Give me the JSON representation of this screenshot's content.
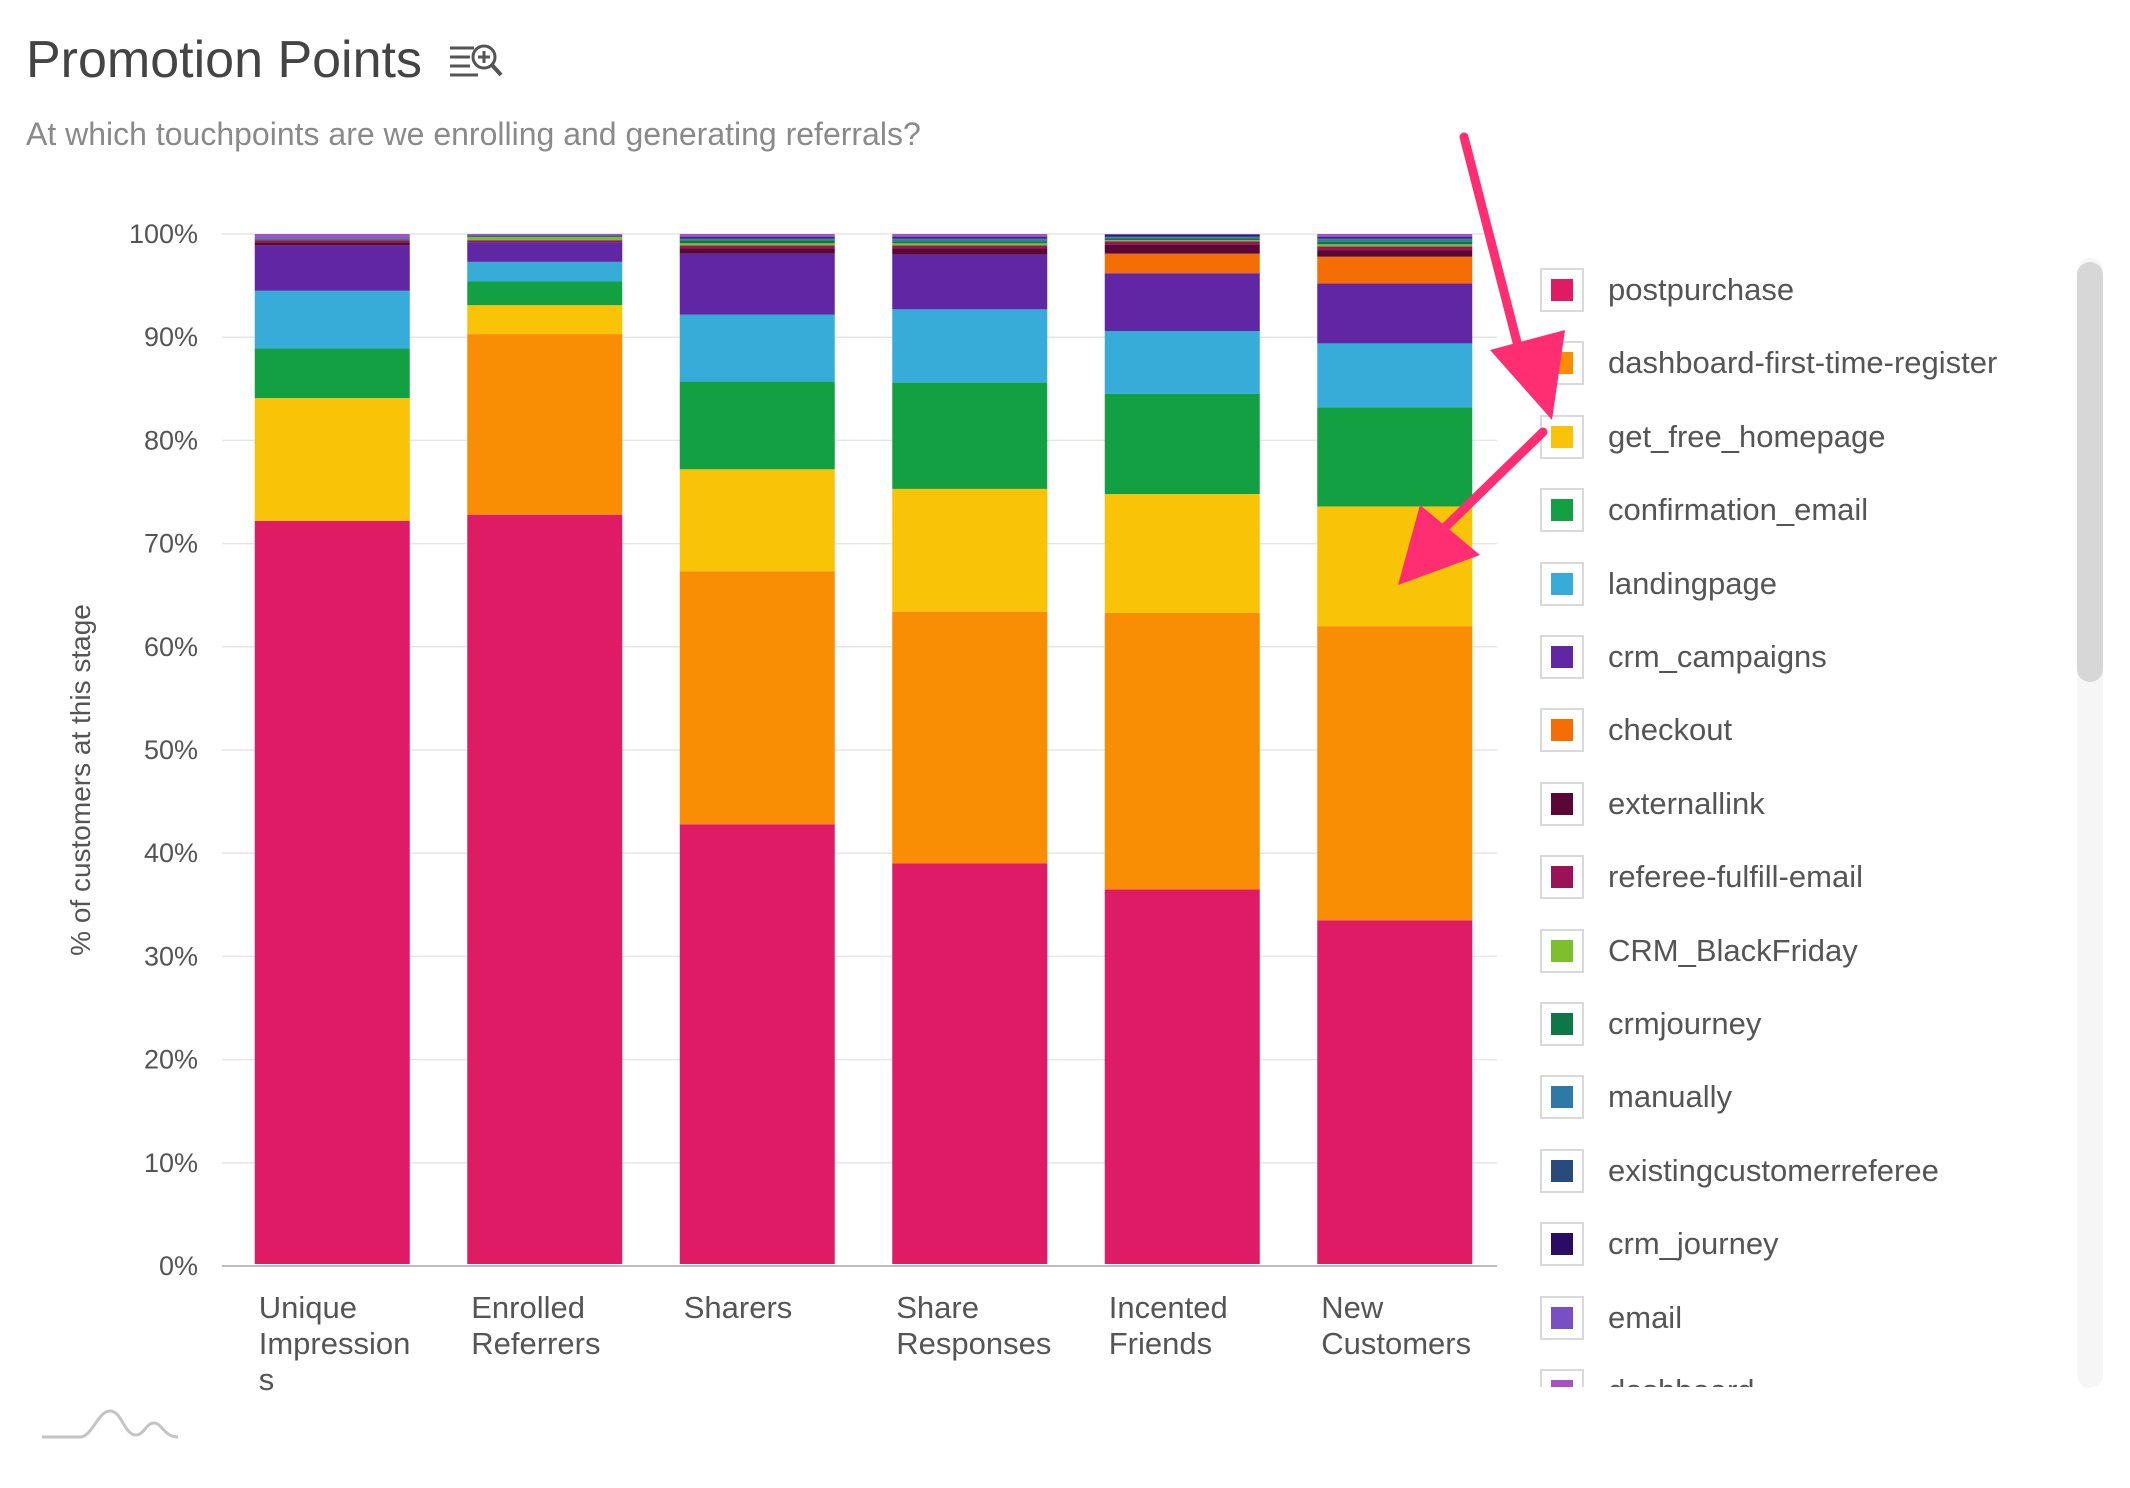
{
  "header": {
    "title": "Promotion Points",
    "title_icon": "list-zoom-icon",
    "subtitle": "At which touchpoints are we enrolling and generating referrals?"
  },
  "colors": {
    "postpurchase": "#e01b66",
    "dashboard-first-time-register": "#f98d03",
    "get_free_homepage": "#f9c408",
    "confirmation_email": "#13a042",
    "landingpage": "#37acd9",
    "crm_campaigns": "#6126a4",
    "checkout": "#f56d05",
    "externallink": "#5a0738",
    "referee-fulfill-email": "#991356",
    "CRM_BlackFriday": "#7dbf2d",
    "crmjourney": "#0f7647",
    "manually": "#2f79a6",
    "existingcustomerreferee": "#284a7d",
    "crm_journey": "#2b0c64",
    "email": "#7a4ec5",
    "dashboard": "#a850c5",
    "annotation_arrow": "#ff2e73"
  },
  "chart_data": {
    "type": "bar",
    "stacked": true,
    "title": "Promotion Points",
    "subtitle": "At which touchpoints are we enrolling and generating referrals?",
    "ylabel": "% of customers at this stage",
    "xlabel": "",
    "ylim": [
      0,
      100
    ],
    "y_ticks": [
      "0%",
      "10%",
      "20%",
      "30%",
      "40%",
      "50%",
      "60%",
      "70%",
      "80%",
      "90%",
      "100%"
    ],
    "grid": true,
    "legend_position": "right",
    "categories": [
      [
        "Unique",
        "Impression",
        "s"
      ],
      [
        "Enrolled",
        "Referrers"
      ],
      [
        "Sharers"
      ],
      [
        "Share",
        "Responses"
      ],
      [
        "Incented",
        "Friends"
      ],
      [
        "New",
        "Customers"
      ]
    ],
    "series": [
      {
        "name": "postpurchase",
        "values": [
          72.2,
          72.8,
          42.8,
          39.0,
          36.5,
          33.5
        ]
      },
      {
        "name": "dashboard-first-time-register",
        "values": [
          0.0,
          17.5,
          24.5,
          24.4,
          26.8,
          28.5
        ]
      },
      {
        "name": "get_free_homepage",
        "values": [
          11.9,
          2.8,
          9.9,
          11.9,
          11.5,
          11.6
        ]
      },
      {
        "name": "confirmation_email",
        "values": [
          4.8,
          2.3,
          8.5,
          10.3,
          9.7,
          9.6
        ]
      },
      {
        "name": "landingpage",
        "values": [
          5.6,
          1.9,
          6.5,
          7.1,
          6.1,
          6.2
        ]
      },
      {
        "name": "crm_campaigns",
        "values": [
          4.4,
          1.9,
          5.9,
          5.3,
          5.6,
          5.8
        ]
      },
      {
        "name": "checkout",
        "values": [
          0.0,
          0.0,
          0.0,
          0.0,
          1.9,
          2.6
        ]
      },
      {
        "name": "externallink",
        "values": [
          0.3,
          0.1,
          0.5,
          0.6,
          0.9,
          0.6
        ]
      },
      {
        "name": "referee-fulfill-email",
        "values": [
          0.2,
          0.1,
          0.3,
          0.3,
          0.3,
          0.4
        ]
      },
      {
        "name": "CRM_BlackFriday",
        "values": [
          0.0,
          0.3,
          0.2,
          0.2,
          0.1,
          0.2
        ]
      },
      {
        "name": "crmjourney",
        "values": [
          0.1,
          0.1,
          0.3,
          0.2,
          0.2,
          0.3
        ]
      },
      {
        "name": "manually",
        "values": [
          0.1,
          0.0,
          0.1,
          0.2,
          0.1,
          0.2
        ]
      },
      {
        "name": "existingcustomerreferee",
        "values": [
          0.0,
          0.0,
          0.1,
          0.1,
          0.1,
          0.1
        ]
      },
      {
        "name": "crm_journey",
        "values": [
          0.0,
          0.0,
          0.1,
          0.1,
          0.1,
          0.1
        ]
      },
      {
        "name": "email",
        "values": [
          0.1,
          0.1,
          0.1,
          0.1,
          0.1,
          0.1
        ]
      },
      {
        "name": "dashboard",
        "values": [
          0.3,
          0.1,
          0.2,
          0.2,
          0.0,
          0.2
        ]
      }
    ]
  },
  "legend": {
    "items": [
      {
        "label": "postpurchase"
      },
      {
        "label": "dashboard-first-time-register"
      },
      {
        "label": "get_free_homepage"
      },
      {
        "label": "confirmation_email"
      },
      {
        "label": "landingpage"
      },
      {
        "label": "crm_campaigns"
      },
      {
        "label": "checkout"
      },
      {
        "label": "externallink"
      },
      {
        "label": "referee-fulfill-email"
      },
      {
        "label": "CRM_BlackFriday"
      },
      {
        "label": "crmjourney"
      },
      {
        "label": "manually"
      },
      {
        "label": "existingcustomerreferee"
      },
      {
        "label": "crm_journey"
      },
      {
        "label": "email"
      },
      {
        "label": "dashboard"
      }
    ]
  },
  "footer": {
    "logo_icon": "mountain-wave-logo-icon"
  },
  "annotation": {
    "type": "arrows",
    "color": "#ff2e73"
  }
}
